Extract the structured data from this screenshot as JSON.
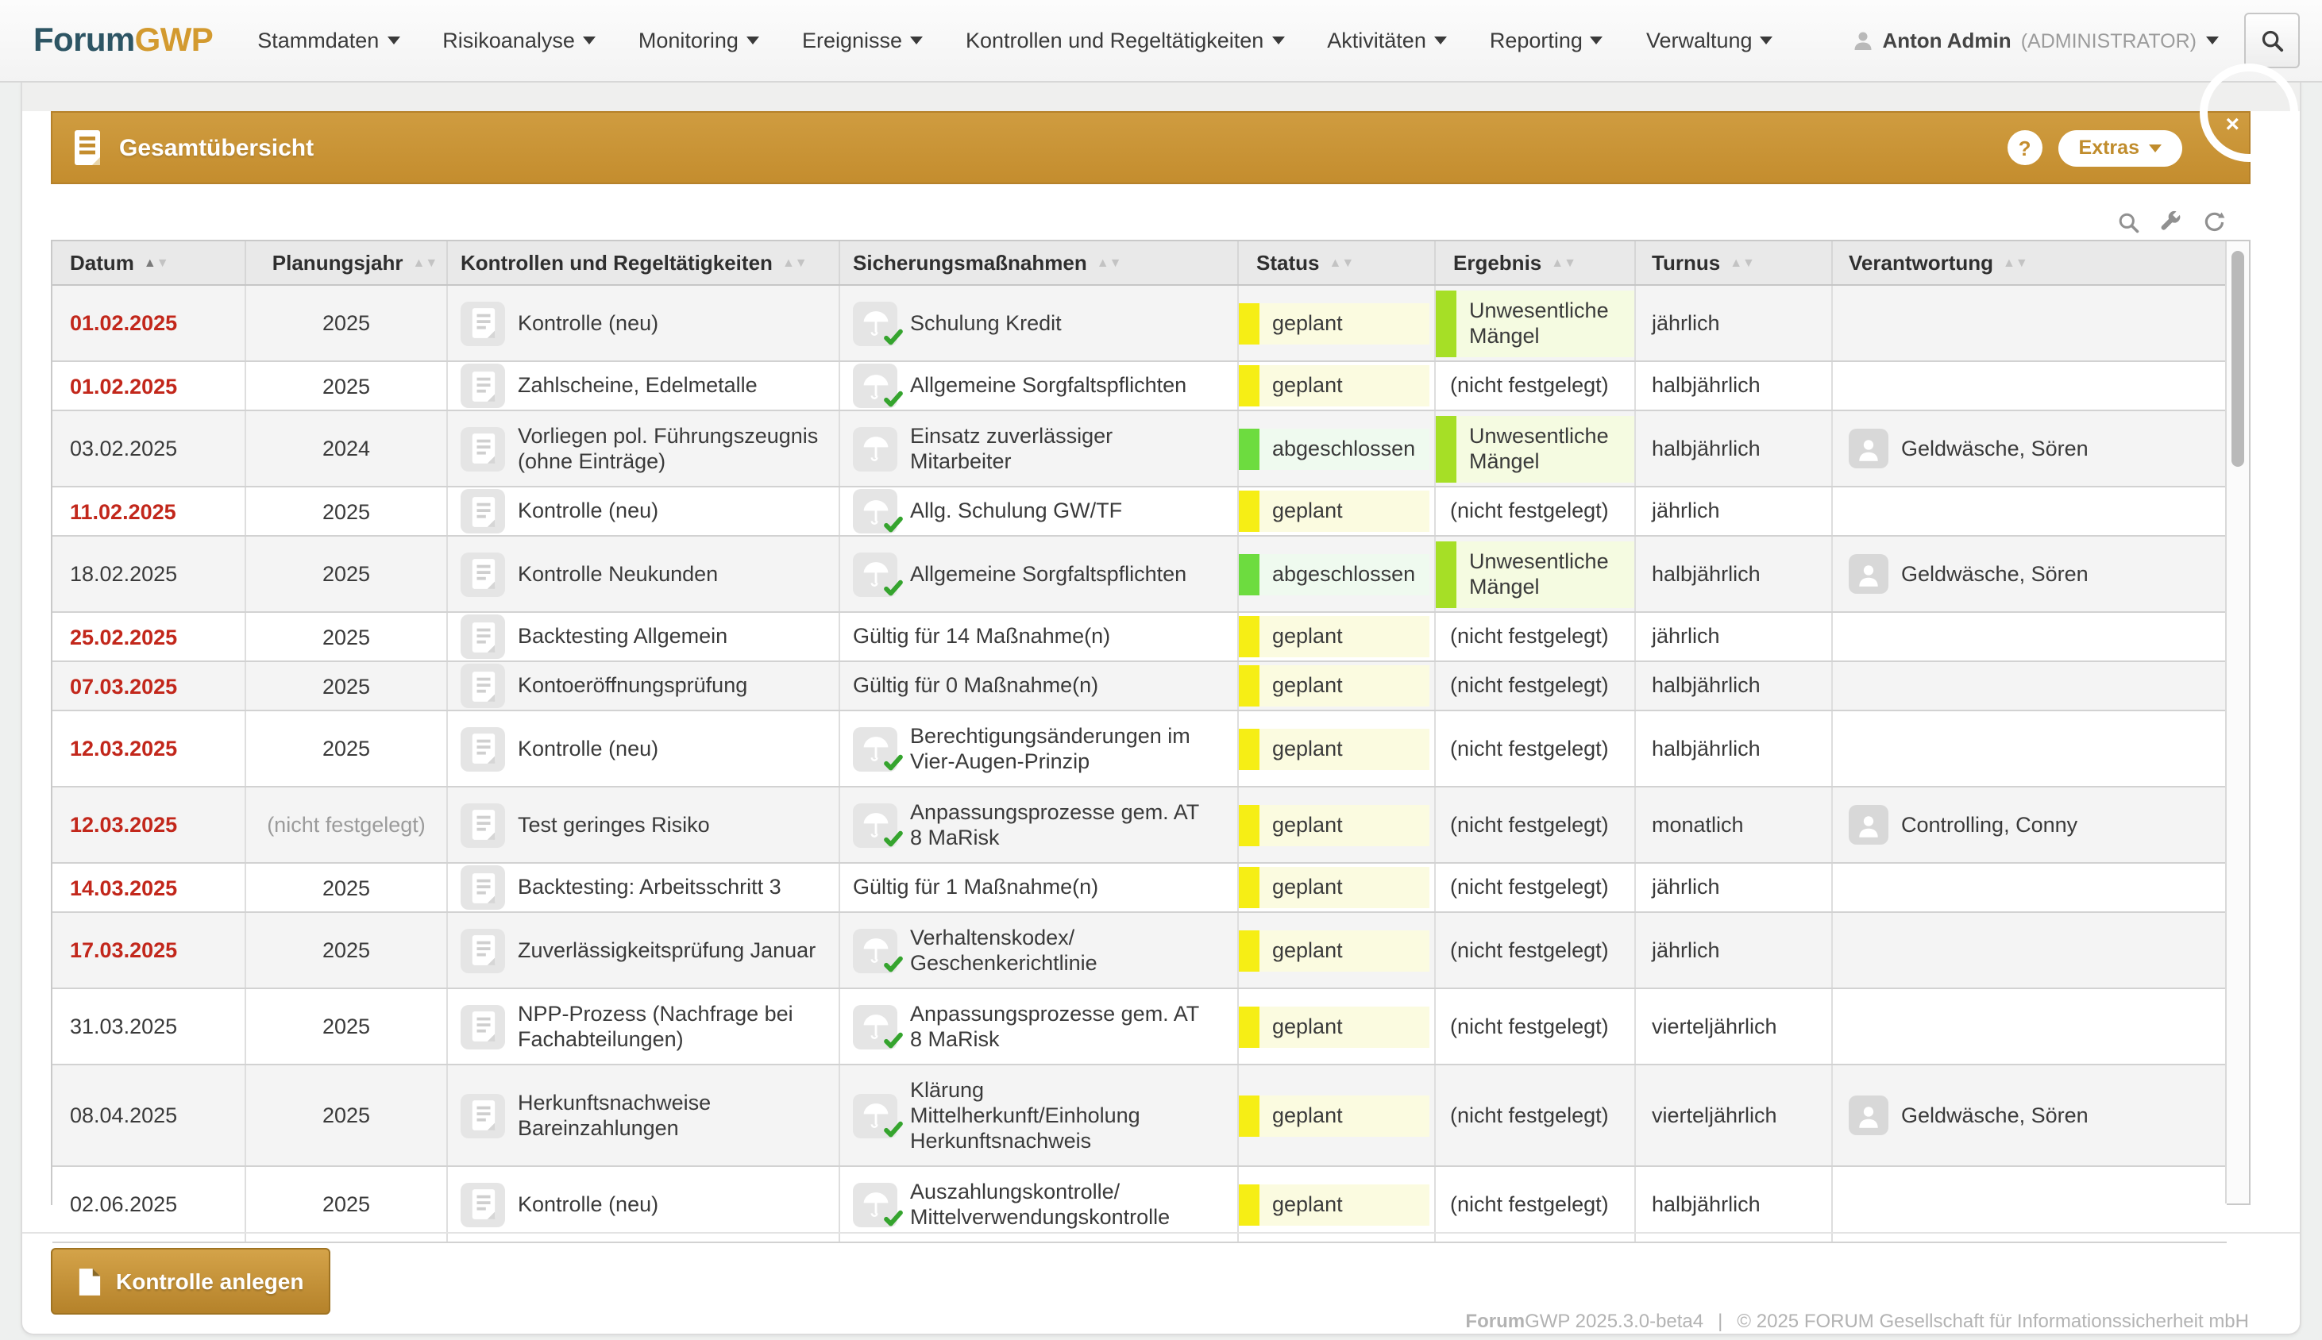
{
  "nav": {
    "logo_primary": "Forum",
    "logo_accent": "GWP",
    "items": [
      {
        "label": "Stammdaten"
      },
      {
        "label": "Risikoanalyse"
      },
      {
        "label": "Monitoring"
      },
      {
        "label": "Ereignisse"
      },
      {
        "label": "Kontrollen und Regeltätigkeiten"
      },
      {
        "label": "Aktivitäten"
      },
      {
        "label": "Reporting"
      },
      {
        "label": "Verwaltung"
      }
    ],
    "user": {
      "name": "Anton Admin",
      "role": "(ADMINISTRATOR)"
    }
  },
  "panel": {
    "title": "Gesamtübersicht",
    "help_label": "?",
    "extras_label": "Extras",
    "close_glyph": "×"
  },
  "table": {
    "columns": [
      {
        "label": "Datum",
        "sort": "asc"
      },
      {
        "label": "Planungsjahr",
        "sort": "none"
      },
      {
        "label": "Kontrollen und Regeltätigkeiten",
        "sort": "none"
      },
      {
        "label": "Sicherungsmaßnahmen",
        "sort": "none"
      },
      {
        "label": "Status",
        "sort": "none"
      },
      {
        "label": "Ergebnis",
        "sort": "none"
      },
      {
        "label": "Turnus",
        "sort": "none"
      },
      {
        "label": "Verantwortung",
        "sort": "none"
      }
    ],
    "rows": [
      {
        "datum": "01.02.2025",
        "datum_red": true,
        "planungsjahr": "2025",
        "planungsjahr_muted": false,
        "kontrolle": "Kontrolle (neu)",
        "kontrolle_icon": true,
        "massnahme": "Schulung Kredit",
        "massnahme_icon": true,
        "massnahme_check": true,
        "status": "geplant",
        "status_type": "planned",
        "ergebnis": "Unwesentliche Mängel",
        "ergebnis_type": "minor",
        "turnus": "jährlich",
        "verantwortung": "",
        "verantwortung_icon": false,
        "size": 2
      },
      {
        "datum": "01.02.2025",
        "datum_red": true,
        "planungsjahr": "2025",
        "planungsjahr_muted": false,
        "kontrolle": "Zahlscheine, Edelmetalle",
        "kontrolle_icon": true,
        "massnahme": "Allgemeine Sorgfaltspflichten",
        "massnahme_icon": true,
        "massnahme_check": true,
        "status": "geplant",
        "status_type": "planned",
        "ergebnis": "(nicht festgelegt)",
        "ergebnis_type": "none",
        "turnus": "halbjährlich",
        "verantwortung": "",
        "verantwortung_icon": false,
        "size": 1
      },
      {
        "datum": "03.02.2025",
        "datum_red": false,
        "planungsjahr": "2024",
        "planungsjahr_muted": false,
        "kontrolle": "Vorliegen pol. Führungszeugnis (ohne Einträge)",
        "kontrolle_icon": true,
        "massnahme": "Einsatz zuverlässiger Mitarbeiter",
        "massnahme_icon": true,
        "massnahme_check": false,
        "status": "abgeschlossen",
        "status_type": "done",
        "ergebnis": "Unwesentliche Mängel",
        "ergebnis_type": "minor",
        "turnus": "halbjährlich",
        "verantwortung": "Geldwäsche, Sören",
        "verantwortung_icon": true,
        "size": 2
      },
      {
        "datum": "11.02.2025",
        "datum_red": true,
        "planungsjahr": "2025",
        "planungsjahr_muted": false,
        "kontrolle": "Kontrolle (neu)",
        "kontrolle_icon": true,
        "massnahme": "Allg. Schulung GW/TF",
        "massnahme_icon": true,
        "massnahme_check": true,
        "status": "geplant",
        "status_type": "planned",
        "ergebnis": "(nicht festgelegt)",
        "ergebnis_type": "none",
        "turnus": "jährlich",
        "verantwortung": "",
        "verantwortung_icon": false,
        "size": 1
      },
      {
        "datum": "18.02.2025",
        "datum_red": false,
        "planungsjahr": "2025",
        "planungsjahr_muted": false,
        "kontrolle": "Kontrolle Neukunden",
        "kontrolle_icon": true,
        "massnahme": "Allgemeine Sorgfaltspflichten",
        "massnahme_icon": true,
        "massnahme_check": true,
        "status": "abgeschlossen",
        "status_type": "done",
        "ergebnis": "Unwesentliche Mängel",
        "ergebnis_type": "minor",
        "turnus": "halbjährlich",
        "verantwortung": "Geldwäsche, Sören",
        "verantwortung_icon": true,
        "size": 2
      },
      {
        "datum": "25.02.2025",
        "datum_red": true,
        "planungsjahr": "2025",
        "planungsjahr_muted": false,
        "kontrolle": "Backtesting Allgemein",
        "kontrolle_icon": true,
        "massnahme": "Gültig für 14 Maßnahme(n)",
        "massnahme_icon": false,
        "massnahme_check": false,
        "status": "geplant",
        "status_type": "planned",
        "ergebnis": "(nicht festgelegt)",
        "ergebnis_type": "none",
        "turnus": "jährlich",
        "verantwortung": "",
        "verantwortung_icon": false,
        "size": 1
      },
      {
        "datum": "07.03.2025",
        "datum_red": true,
        "planungsjahr": "2025",
        "planungsjahr_muted": false,
        "kontrolle": "Kontoeröffnungsprüfung",
        "kontrolle_icon": true,
        "massnahme": "Gültig für 0 Maßnahme(n)",
        "massnahme_icon": false,
        "massnahme_check": false,
        "status": "geplant",
        "status_type": "planned",
        "ergebnis": "(nicht festgelegt)",
        "ergebnis_type": "none",
        "turnus": "halbjährlich",
        "verantwortung": "",
        "verantwortung_icon": false,
        "size": 1
      },
      {
        "datum": "12.03.2025",
        "datum_red": true,
        "planungsjahr": "2025",
        "planungsjahr_muted": false,
        "kontrolle": "Kontrolle (neu)",
        "kontrolle_icon": true,
        "massnahme": "Berechtigungsänderungen im Vier-Augen-Prinzip",
        "massnahme_icon": true,
        "massnahme_check": true,
        "status": "geplant",
        "status_type": "planned",
        "ergebnis": "(nicht festgelegt)",
        "ergebnis_type": "none",
        "turnus": "halbjährlich",
        "verantwortung": "",
        "verantwortung_icon": false,
        "size": 2
      },
      {
        "datum": "12.03.2025",
        "datum_red": true,
        "planungsjahr": "(nicht festgelegt)",
        "planungsjahr_muted": true,
        "kontrolle": "Test geringes Risiko",
        "kontrolle_icon": true,
        "massnahme": "Anpassungsprozesse gem. AT 8 MaRisk",
        "massnahme_icon": true,
        "massnahme_check": true,
        "status": "geplant",
        "status_type": "planned",
        "ergebnis": "(nicht festgelegt)",
        "ergebnis_type": "none",
        "turnus": "monatlich",
        "verantwortung": "Controlling, Conny",
        "verantwortung_icon": true,
        "size": 2
      },
      {
        "datum": "14.03.2025",
        "datum_red": true,
        "planungsjahr": "2025",
        "planungsjahr_muted": false,
        "kontrolle": "Backtesting: Arbeitsschritt 3",
        "kontrolle_icon": true,
        "massnahme": "Gültig für 1 Maßnahme(n)",
        "massnahme_icon": false,
        "massnahme_check": false,
        "status": "geplant",
        "status_type": "planned",
        "ergebnis": "(nicht festgelegt)",
        "ergebnis_type": "none",
        "turnus": "jährlich",
        "verantwortung": "",
        "verantwortung_icon": false,
        "size": 1
      },
      {
        "datum": "17.03.2025",
        "datum_red": true,
        "planungsjahr": "2025",
        "planungsjahr_muted": false,
        "kontrolle": "Zuverlässigkeitsprüfung Januar",
        "kontrolle_icon": true,
        "massnahme": "Verhaltenskodex/ Geschenkerichtlinie",
        "massnahme_icon": true,
        "massnahme_check": true,
        "status": "geplant",
        "status_type": "planned",
        "ergebnis": "(nicht festgelegt)",
        "ergebnis_type": "none",
        "turnus": "jährlich",
        "verantwortung": "",
        "verantwortung_icon": false,
        "size": 2
      },
      {
        "datum": "31.03.2025",
        "datum_red": false,
        "planungsjahr": "2025",
        "planungsjahr_muted": false,
        "kontrolle": "NPP-Prozess (Nachfrage bei Fachabteilungen)",
        "kontrolle_icon": true,
        "massnahme": "Anpassungsprozesse gem. AT 8 MaRisk",
        "massnahme_icon": true,
        "massnahme_check": true,
        "status": "geplant",
        "status_type": "planned",
        "ergebnis": "(nicht festgelegt)",
        "ergebnis_type": "none",
        "turnus": "vierteljährlich",
        "verantwortung": "",
        "verantwortung_icon": false,
        "size": 2
      },
      {
        "datum": "08.04.2025",
        "datum_red": false,
        "planungsjahr": "2025",
        "planungsjahr_muted": false,
        "kontrolle": "Herkunftsnachweise Bareinzahlungen",
        "kontrolle_icon": true,
        "massnahme": "Klärung Mittelherkunft/Einholung Herkunftsnachweis",
        "massnahme_icon": true,
        "massnahme_check": true,
        "status": "geplant",
        "status_type": "planned",
        "ergebnis": "(nicht festgelegt)",
        "ergebnis_type": "none",
        "turnus": "vierteljährlich",
        "verantwortung": "Geldwäsche, Sören",
        "verantwortung_icon": true,
        "size": 3
      },
      {
        "datum": "02.06.2025",
        "datum_red": false,
        "planungsjahr": "2025",
        "planungsjahr_muted": false,
        "kontrolle": "Kontrolle (neu)",
        "kontrolle_icon": true,
        "massnahme": "Auszahlungskontrolle/ Mittelverwendungskontrolle",
        "massnahme_icon": true,
        "massnahme_check": true,
        "status": "geplant",
        "status_type": "planned",
        "ergebnis": "(nicht festgelegt)",
        "ergebnis_type": "none",
        "turnus": "halbjährlich",
        "verantwortung": "",
        "verantwortung_icon": false,
        "size": 2
      }
    ]
  },
  "actions": {
    "create_label": "Kontrolle anlegen"
  },
  "footer": {
    "brand_bold": "Forum",
    "brand_rest": "GWP 2025.3.0-beta4",
    "separator": "|",
    "copyright": "© 2025 FORUM Gesellschaft für Informationssicherheit mbH"
  },
  "colors": {
    "accent_orange": "#c48d2e",
    "logo_dark": "#2d5564",
    "logo_gold": "#d39a2f",
    "date_overdue": "#c2271b",
    "status_planned_bar": "#f6ee15",
    "status_planned_bg": "#fbfbe0",
    "status_done_bar": "#6ddc3f",
    "status_done_bg": "#effaef",
    "result_minor_bar": "#a6df26",
    "result_minor_bg": "#f5fbe1",
    "check_green": "#35a42e"
  }
}
